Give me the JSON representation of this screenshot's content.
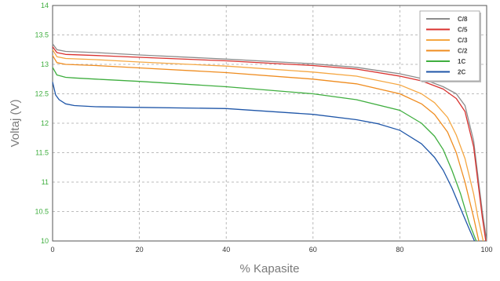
{
  "chart_data": {
    "type": "line",
    "xlabel": "% Kapasite",
    "ylabel": "Voltaj (V)",
    "xlim": [
      0,
      100
    ],
    "ylim": [
      10,
      14
    ],
    "x_ticks": [
      "0",
      "20",
      "40",
      "60",
      "80",
      "100"
    ],
    "y_ticks": [
      "10",
      "10.5",
      "11",
      "11.5",
      "12",
      "12.5",
      "13",
      "13.5",
      "14"
    ],
    "grid": true,
    "legend_position": "top-right",
    "series": [
      {
        "name": "C/8",
        "color": "#8c8c8c",
        "x": [
          0,
          1,
          3,
          10,
          20,
          40,
          60,
          70,
          80,
          85,
          90,
          93,
          95,
          97,
          98,
          99,
          100
        ],
        "y": [
          13.35,
          13.25,
          13.22,
          13.2,
          13.16,
          13.09,
          13.01,
          12.95,
          12.84,
          12.76,
          12.62,
          12.5,
          12.3,
          11.7,
          11.1,
          10.5,
          10.0
        ]
      },
      {
        "name": "C/5",
        "color": "#d9312e",
        "x": [
          0,
          1,
          3,
          10,
          20,
          40,
          60,
          70,
          80,
          85,
          90,
          93,
          95,
          97,
          98,
          99,
          99.8
        ],
        "y": [
          13.3,
          13.2,
          13.17,
          13.15,
          13.12,
          13.06,
          12.98,
          12.92,
          12.8,
          12.72,
          12.58,
          12.42,
          12.2,
          11.6,
          11.0,
          10.4,
          10.0
        ]
      },
      {
        "name": "C/3",
        "color": "#f5a742",
        "x": [
          0,
          1,
          3,
          10,
          20,
          40,
          60,
          70,
          80,
          85,
          88,
          91,
          93,
          95,
          97,
          98,
          99.2
        ],
        "y": [
          13.25,
          13.13,
          13.1,
          13.08,
          13.04,
          12.97,
          12.87,
          12.8,
          12.65,
          12.5,
          12.35,
          12.1,
          11.8,
          11.4,
          10.8,
          10.4,
          10.0
        ]
      },
      {
        "name": "C/2",
        "color": "#ef8c1f",
        "x": [
          0,
          1,
          3,
          10,
          20,
          40,
          60,
          70,
          80,
          85,
          88,
          91,
          93,
          95,
          97,
          98.2
        ],
        "y": [
          13.15,
          13.03,
          13.0,
          12.98,
          12.94,
          12.86,
          12.75,
          12.67,
          12.5,
          12.33,
          12.15,
          11.85,
          11.5,
          11.0,
          10.4,
          10.0
        ]
      },
      {
        "name": "1C",
        "color": "#3fae3f",
        "x": [
          0,
          1,
          3,
          5,
          10,
          20,
          40,
          60,
          70,
          80,
          85,
          88,
          90,
          92,
          94,
          96,
          97.6
        ],
        "y": [
          12.95,
          12.82,
          12.78,
          12.77,
          12.75,
          12.71,
          12.62,
          12.5,
          12.4,
          12.22,
          12.0,
          11.78,
          11.55,
          11.2,
          10.8,
          10.3,
          10.0
        ]
      },
      {
        "name": "2C",
        "color": "#1f56a8",
        "x": [
          0,
          0.7,
          1.5,
          3,
          5,
          10,
          20,
          40,
          60,
          70,
          75,
          80,
          85,
          88,
          90,
          92,
          94,
          96,
          97.2
        ],
        "y": [
          12.7,
          12.48,
          12.4,
          12.33,
          12.3,
          12.28,
          12.27,
          12.25,
          12.15,
          12.06,
          11.99,
          11.88,
          11.65,
          11.42,
          11.2,
          10.9,
          10.55,
          10.2,
          10.0
        ]
      }
    ]
  }
}
